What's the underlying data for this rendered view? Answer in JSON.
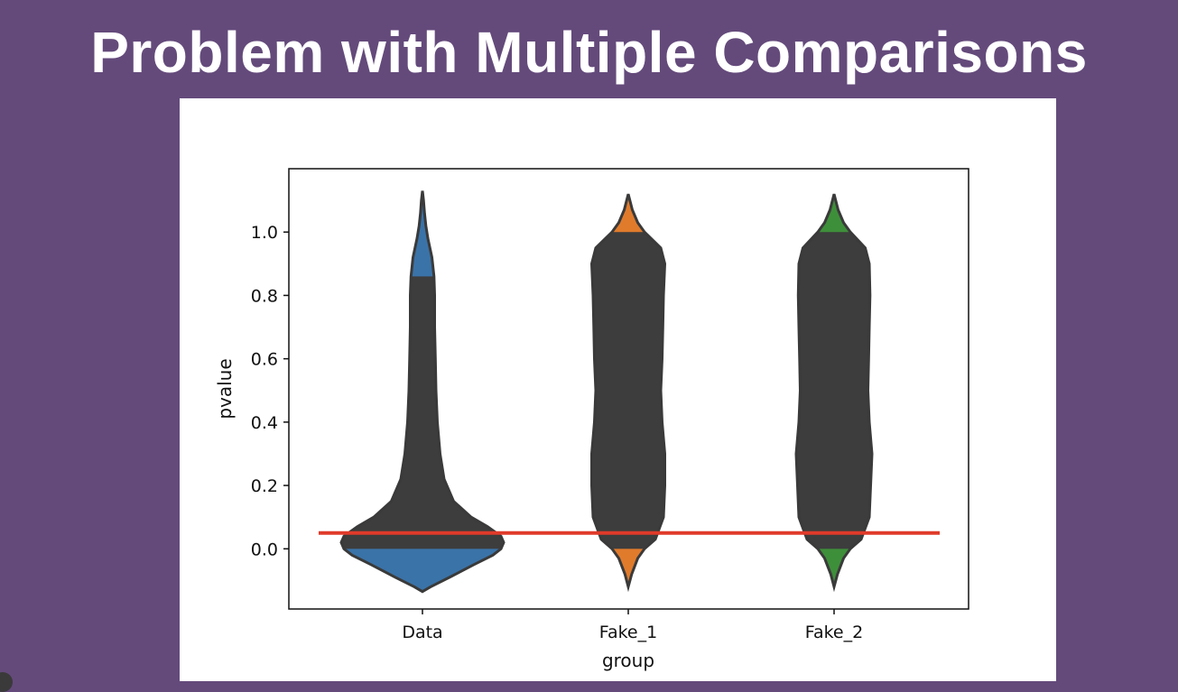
{
  "slide": {
    "title": "Problem with Multiple Comparisons"
  },
  "chart_data": {
    "type": "violin",
    "title": "",
    "xlabel": "group",
    "ylabel": "pvalue",
    "categories": [
      "Data",
      "Fake_1",
      "Fake_2"
    ],
    "category_colors": [
      "#3a73a8",
      "#e07b2c",
      "#3e8f3a"
    ],
    "body_color": "#3d3d3d",
    "ylim": [
      -0.19,
      1.2
    ],
    "yticks": [
      0.0,
      0.2,
      0.4,
      0.6,
      0.8,
      1.0
    ],
    "ytick_labels": [
      "0.0",
      "0.2",
      "0.4",
      "0.6",
      "0.8",
      "1.0"
    ],
    "threshold": {
      "y": 0.05,
      "color": "#e03a2a"
    },
    "violins": [
      {
        "name": "Data",
        "quartiles": [
          0.0,
          0.86
        ],
        "profile": [
          [
            -0.135,
            0.0
          ],
          [
            -0.12,
            0.06
          ],
          [
            -0.09,
            0.2
          ],
          [
            -0.05,
            0.38
          ],
          [
            -0.02,
            0.52
          ],
          [
            0.0,
            0.58
          ],
          [
            0.02,
            0.6
          ],
          [
            0.04,
            0.58
          ],
          [
            0.07,
            0.48
          ],
          [
            0.1,
            0.36
          ],
          [
            0.15,
            0.23
          ],
          [
            0.22,
            0.16
          ],
          [
            0.3,
            0.13
          ],
          [
            0.4,
            0.11
          ],
          [
            0.5,
            0.1
          ],
          [
            0.6,
            0.095
          ],
          [
            0.7,
            0.09
          ],
          [
            0.8,
            0.09
          ],
          [
            0.86,
            0.085
          ],
          [
            0.92,
            0.07
          ],
          [
            0.98,
            0.04
          ],
          [
            1.02,
            0.025
          ],
          [
            1.06,
            0.015
          ],
          [
            1.1,
            0.008
          ],
          [
            1.13,
            0.0
          ]
        ]
      },
      {
        "name": "Fake_1",
        "quartiles": [
          0.0,
          1.0
        ],
        "profile": [
          [
            -0.12,
            0.0
          ],
          [
            -0.08,
            0.025
          ],
          [
            -0.03,
            0.07
          ],
          [
            0.0,
            0.12
          ],
          [
            0.03,
            0.2
          ],
          [
            0.1,
            0.26
          ],
          [
            0.2,
            0.27
          ],
          [
            0.3,
            0.27
          ],
          [
            0.4,
            0.25
          ],
          [
            0.5,
            0.24
          ],
          [
            0.6,
            0.25
          ],
          [
            0.7,
            0.255
          ],
          [
            0.8,
            0.26
          ],
          [
            0.9,
            0.27
          ],
          [
            0.95,
            0.24
          ],
          [
            1.0,
            0.12
          ],
          [
            1.03,
            0.07
          ],
          [
            1.07,
            0.03
          ],
          [
            1.12,
            0.0
          ]
        ]
      },
      {
        "name": "Fake_2",
        "quartiles": [
          0.0,
          1.0
        ],
        "profile": [
          [
            -0.12,
            0.0
          ],
          [
            -0.08,
            0.025
          ],
          [
            -0.03,
            0.07
          ],
          [
            0.0,
            0.12
          ],
          [
            0.03,
            0.2
          ],
          [
            0.1,
            0.26
          ],
          [
            0.2,
            0.27
          ],
          [
            0.3,
            0.28
          ],
          [
            0.4,
            0.26
          ],
          [
            0.5,
            0.25
          ],
          [
            0.6,
            0.255
          ],
          [
            0.7,
            0.26
          ],
          [
            0.8,
            0.265
          ],
          [
            0.9,
            0.26
          ],
          [
            0.95,
            0.23
          ],
          [
            1.0,
            0.12
          ],
          [
            1.03,
            0.07
          ],
          [
            1.07,
            0.03
          ],
          [
            1.12,
            0.0
          ]
        ]
      }
    ]
  }
}
